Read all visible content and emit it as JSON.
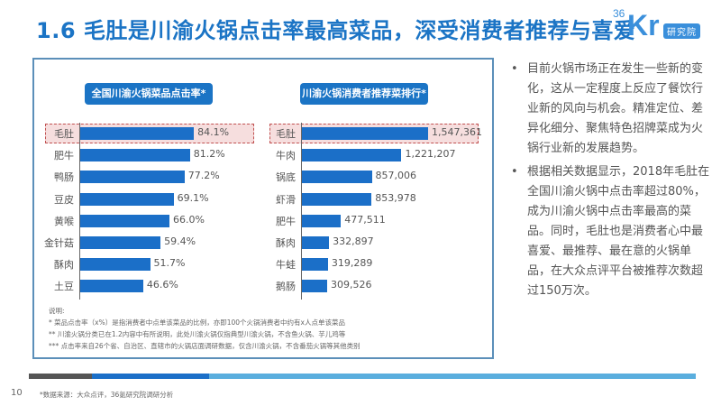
{
  "title": "1.6 毛肚是川渝火锅点击率最高菜品，深受消费者推荐与喜爱",
  "logo": {
    "num": "36",
    "kr": "Kr",
    "tag": "研究院"
  },
  "chart_data": [
    {
      "type": "bar",
      "orientation": "horizontal",
      "title": "全国川渝火锅菜品点击率*",
      "categories": [
        "毛肚",
        "肥牛",
        "鸭肠",
        "豆皮",
        "黄喉",
        "金针菇",
        "酥肉",
        "土豆"
      ],
      "values": [
        84.1,
        81.2,
        77.2,
        69.1,
        66.0,
        59.4,
        51.7,
        46.6
      ],
      "value_labels": [
        "84.1%",
        "81.2%",
        "77.2%",
        "69.1%",
        "66.0%",
        "59.4%",
        "51.7%",
        "46.6%"
      ],
      "unit": "%",
      "highlighted": "毛肚",
      "xlim": [
        0,
        100
      ],
      "bar_color": "#1b6fc8"
    },
    {
      "type": "bar",
      "orientation": "horizontal",
      "title": "川渝火锅消费者推荐菜排行*",
      "categories": [
        "毛肚",
        "牛肉",
        "锅底",
        "虾滑",
        "肥牛",
        "酥肉",
        "牛蛙",
        "鹅肠"
      ],
      "values": [
        1547361,
        1221207,
        857006,
        853978,
        477511,
        332897,
        319289,
        309526
      ],
      "value_labels": [
        "1,547,361",
        "1,221,207",
        "857,006",
        "853,978",
        "477,511",
        "332,897",
        "319,289",
        "309,526"
      ],
      "highlighted": "毛肚",
      "xlim": [
        0,
        1547361
      ],
      "bar_color": "#1b6fc8"
    }
  ],
  "notes": {
    "heading": "说明:",
    "lines": [
      "* 菜品点击率（x%）是指消费者中点单该菜品的比例，亦即100个火锅消费者中约有x人点单该菜品",
      "** 川渝火锅分类已在1.2内容中有所说明，此处川渝火锅仅指典型川渝火锅，不含鱼火锅、芋儿鸡等",
      "*** 点击率来自26个省、自治区、直辖市的火锅店面调研数据，仅含川渝火锅，不含番茄火锅等其他类别"
    ]
  },
  "bullets": [
    "目前火锅市场正在发生一些新的变化，这从一定程度上反应了餐饮行业新的风向与机会。精准定位、差异化细分、聚焦特色招牌菜成为火锅行业新的发展趋势。",
    "根据相关数据显示，2018年毛肚在全国川渝火锅中点击率超过80%，成为川渝火锅中点击率最高的菜品。同时，毛肚也是消费者心中最喜爱、最推荐、最在意的火锅单品，在大众点评平台被推荐次数超过150万次。"
  ],
  "bullet_symbol": "•",
  "footer": {
    "page_number": "10",
    "source": "*数据来源：大众点评，36氪研究院调研分析"
  }
}
